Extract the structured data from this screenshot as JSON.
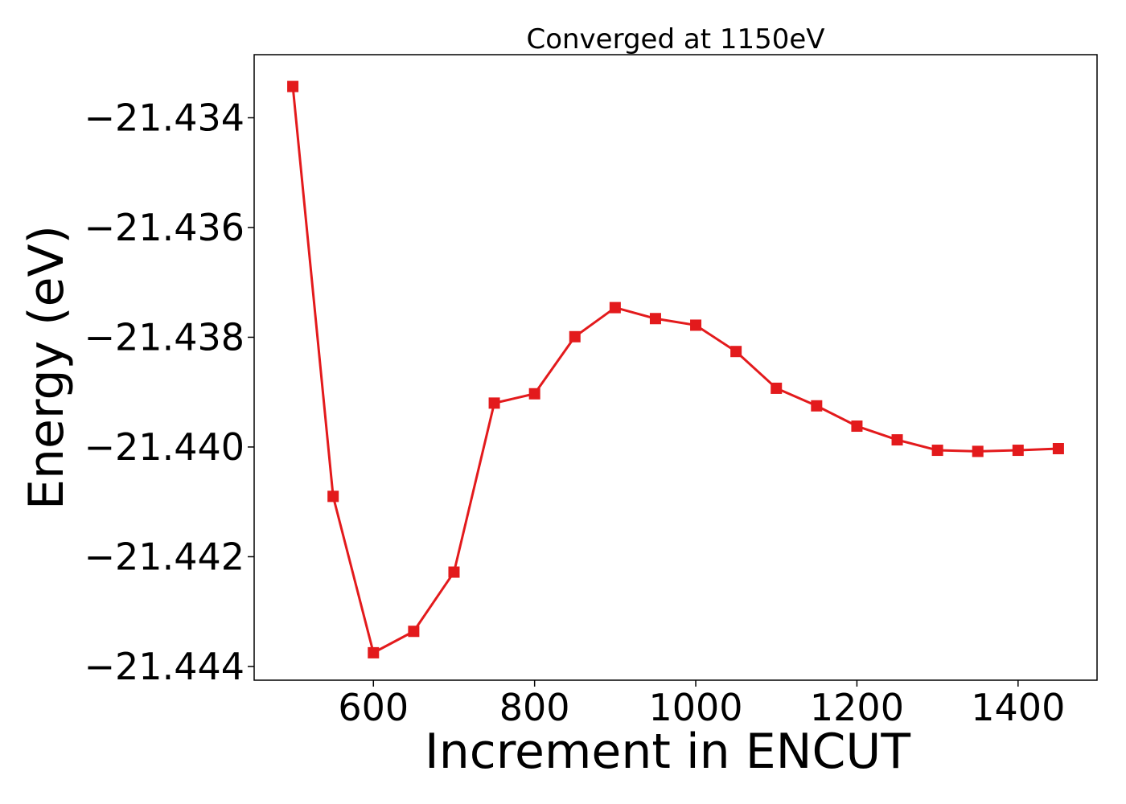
{
  "chart_data": {
    "type": "line",
    "title": "Converged at 1150eV",
    "xlabel": "Increment in ENCUT",
    "ylabel": "Energy (eV)",
    "xlim": [
      452,
      1498
    ],
    "ylim": [
      -21.44425,
      -21.43285
    ],
    "x_ticks": [
      600,
      800,
      1000,
      1200,
      1400
    ],
    "x_tick_labels": [
      "600",
      "800",
      "1000",
      "1200",
      "1400"
    ],
    "y_ticks": [
      -21.434,
      -21.436,
      -21.438,
      -21.44,
      -21.442,
      -21.444
    ],
    "y_tick_labels": [
      "−21.434",
      "−21.436",
      "−21.438",
      "−21.440",
      "−21.442",
      "−21.444"
    ],
    "grid": false,
    "series": [
      {
        "color": "#e31a1c",
        "marker": "square",
        "x": [
          500,
          550,
          600,
          650,
          700,
          750,
          800,
          850,
          900,
          950,
          1000,
          1050,
          1100,
          1150,
          1200,
          1250,
          1300,
          1350,
          1400,
          1450
        ],
        "y": [
          -21.43343,
          -21.4409,
          -21.44375,
          -21.44336,
          -21.44228,
          -21.4392,
          -21.43903,
          -21.43799,
          -21.43746,
          -21.43766,
          -21.43778,
          -21.43826,
          -21.43893,
          -21.43925,
          -21.43962,
          -21.43987,
          -21.44006,
          -21.44008,
          -21.44006,
          -21.44003
        ]
      }
    ]
  }
}
